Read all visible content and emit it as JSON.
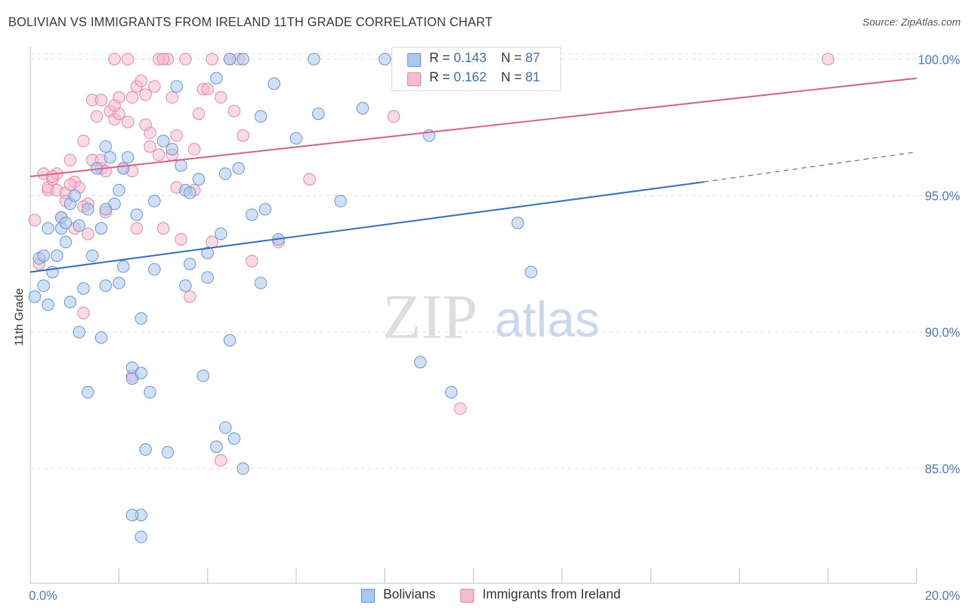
{
  "title": "BOLIVIAN VS IMMIGRANTS FROM IRELAND 11TH GRADE CORRELATION CHART",
  "source": "Source: ZipAtlas.com",
  "watermark": {
    "zip": "ZIP",
    "atlas": "atlas"
  },
  "legend": {
    "rows": [
      {
        "r_label": "R = ",
        "r_value": "0.143",
        "n_label": "N = ",
        "n_value": "87"
      },
      {
        "r_label": "R = ",
        "r_value": "0.162",
        "n_label": "N = ",
        "n_value": "81"
      }
    ],
    "series": [
      "Bolivians",
      "Immigrants from Ireland"
    ]
  },
  "colors": {
    "blue_fill": "#aac8ef",
    "blue_stroke": "#5b8fd8",
    "blue_line": "#2f6fce",
    "pink_fill": "#f5bccd",
    "pink_stroke": "#e8809f",
    "pink_line": "#e0608a",
    "axis_text": "#4a7cc9",
    "grid": "#dcdcdc"
  },
  "chart_data": {
    "type": "scatter",
    "ylabel": "11th Grade",
    "xlim": [
      0,
      20
    ],
    "ylim": [
      80.8,
      100.6
    ],
    "x_tick_labels": [
      {
        "value": 0,
        "label": "0.0%"
      },
      {
        "value": 20,
        "label": "20.0%"
      }
    ],
    "y_ticks": [
      {
        "value": 85,
        "label": "85.0%"
      },
      {
        "value": 90,
        "label": "90.0%"
      },
      {
        "value": 95,
        "label": "95.0%"
      },
      {
        "value": 100,
        "label": "100.0%"
      }
    ],
    "grid": true,
    "series": [
      {
        "name": "Bolivians",
        "trend": {
          "x0": 0,
          "y0": 92.2,
          "x1": 15.2,
          "y1": 95.5,
          "dash_to_x": 20,
          "dash_to_y": 96.6
        },
        "points": [
          [
            0.1,
            91.3
          ],
          [
            0.2,
            92.7
          ],
          [
            0.3,
            92.8
          ],
          [
            0.3,
            91.7
          ],
          [
            0.4,
            93.8
          ],
          [
            0.4,
            91.0
          ],
          [
            0.5,
            92.2
          ],
          [
            0.6,
            92.8
          ],
          [
            0.7,
            94.2
          ],
          [
            0.7,
            93.8
          ],
          [
            0.8,
            93.3
          ],
          [
            0.8,
            94.0
          ],
          [
            0.9,
            94.7
          ],
          [
            0.9,
            91.1
          ],
          [
            1.0,
            95.0
          ],
          [
            1.1,
            90.0
          ],
          [
            1.1,
            93.9
          ],
          [
            1.2,
            91.6
          ],
          [
            1.3,
            94.5
          ],
          [
            1.4,
            92.8
          ],
          [
            1.5,
            96.0
          ],
          [
            1.6,
            93.8
          ],
          [
            1.6,
            89.8
          ],
          [
            1.7,
            96.8
          ],
          [
            1.7,
            91.7
          ],
          [
            1.8,
            96.4
          ],
          [
            1.9,
            94.7
          ],
          [
            2.0,
            95.2
          ],
          [
            2.0,
            91.8
          ],
          [
            2.1,
            96.0
          ],
          [
            2.1,
            92.4
          ],
          [
            2.2,
            96.4
          ],
          [
            2.3,
            88.7
          ],
          [
            2.3,
            88.3
          ],
          [
            2.4,
            94.3
          ],
          [
            2.5,
            88.5
          ],
          [
            2.5,
            90.5
          ],
          [
            2.6,
            85.7
          ],
          [
            2.7,
            87.8
          ],
          [
            2.8,
            92.3
          ],
          [
            2.8,
            94.8
          ],
          [
            3.0,
            97.0
          ],
          [
            3.1,
            85.6
          ],
          [
            3.2,
            96.7
          ],
          [
            3.3,
            99.0
          ],
          [
            3.4,
            96.1
          ],
          [
            3.5,
            91.7
          ],
          [
            3.5,
            95.2
          ],
          [
            3.6,
            92.5
          ],
          [
            3.8,
            95.6
          ],
          [
            3.9,
            88.4
          ],
          [
            4.0,
            92.9
          ],
          [
            4.0,
            92.0
          ],
          [
            4.2,
            85.8
          ],
          [
            4.2,
            99.3
          ],
          [
            4.3,
            93.6
          ],
          [
            4.4,
            95.8
          ],
          [
            4.4,
            86.5
          ],
          [
            4.5,
            89.7
          ],
          [
            4.6,
            86.1
          ],
          [
            4.7,
            96.0
          ],
          [
            4.8,
            100.0
          ],
          [
            4.8,
            85.0
          ],
          [
            5.0,
            94.3
          ],
          [
            5.2,
            97.9
          ],
          [
            5.2,
            91.8
          ],
          [
            5.3,
            94.5
          ],
          [
            5.5,
            99.1
          ],
          [
            5.6,
            93.4
          ],
          [
            6.0,
            97.1
          ],
          [
            6.4,
            100.0
          ],
          [
            6.5,
            98.0
          ],
          [
            7.0,
            94.8
          ],
          [
            7.5,
            98.2
          ],
          [
            8.0,
            100.0
          ],
          [
            8.8,
            88.9
          ],
          [
            9.0,
            97.2
          ],
          [
            9.5,
            87.8
          ],
          [
            11.0,
            94.0
          ],
          [
            11.3,
            92.2
          ],
          [
            2.5,
            83.3
          ],
          [
            2.5,
            82.5
          ],
          [
            2.3,
            83.3
          ],
          [
            1.3,
            87.8
          ],
          [
            1.7,
            94.5
          ],
          [
            3.6,
            95.1
          ],
          [
            4.5,
            100.0
          ]
        ]
      },
      {
        "name": "Immigrants from Ireland",
        "trend": {
          "x0": 0,
          "y0": 95.7,
          "x1": 20,
          "y1": 99.3
        },
        "points": [
          [
            0.1,
            94.1
          ],
          [
            0.2,
            92.5
          ],
          [
            0.3,
            95.8
          ],
          [
            0.4,
            95.2
          ],
          [
            0.4,
            95.3
          ],
          [
            0.5,
            95.6
          ],
          [
            0.6,
            95.8
          ],
          [
            0.6,
            95.2
          ],
          [
            0.7,
            94.2
          ],
          [
            0.8,
            95.1
          ],
          [
            0.9,
            96.3
          ],
          [
            1.0,
            95.5
          ],
          [
            1.0,
            93.8
          ],
          [
            1.1,
            95.3
          ],
          [
            1.2,
            97.0
          ],
          [
            1.2,
            90.7
          ],
          [
            1.3,
            94.7
          ],
          [
            1.3,
            93.6
          ],
          [
            1.4,
            96.3
          ],
          [
            1.4,
            98.5
          ],
          [
            1.5,
            97.9
          ],
          [
            1.6,
            98.5
          ],
          [
            1.6,
            96.0
          ],
          [
            1.7,
            94.4
          ],
          [
            1.7,
            95.9
          ],
          [
            1.8,
            98.1
          ],
          [
            1.9,
            97.8
          ],
          [
            2.0,
            98.6
          ],
          [
            2.0,
            98.0
          ],
          [
            2.1,
            96.0
          ],
          [
            2.2,
            97.7
          ],
          [
            2.3,
            95.9
          ],
          [
            2.3,
            98.6
          ],
          [
            2.4,
            99.0
          ],
          [
            2.4,
            93.8
          ],
          [
            2.5,
            99.2
          ],
          [
            2.6,
            98.7
          ],
          [
            2.7,
            97.3
          ],
          [
            2.8,
            99.0
          ],
          [
            2.9,
            96.5
          ],
          [
            3.0,
            93.8
          ],
          [
            3.1,
            100.0
          ],
          [
            3.2,
            98.6
          ],
          [
            3.3,
            97.2
          ],
          [
            3.3,
            95.3
          ],
          [
            3.4,
            93.4
          ],
          [
            3.5,
            100.0
          ],
          [
            3.6,
            91.3
          ],
          [
            3.7,
            96.7
          ],
          [
            3.8,
            98.0
          ],
          [
            3.9,
            98.9
          ],
          [
            4.0,
            98.9
          ],
          [
            4.1,
            93.3
          ],
          [
            4.3,
            98.6
          ],
          [
            4.3,
            85.3
          ],
          [
            4.6,
            98.1
          ],
          [
            4.7,
            100.0
          ],
          [
            4.8,
            97.2
          ],
          [
            5.0,
            92.6
          ],
          [
            5.6,
            93.3
          ],
          [
            6.3,
            95.6
          ],
          [
            8.2,
            97.9
          ],
          [
            9.7,
            87.2
          ],
          [
            18.0,
            100.0
          ],
          [
            2.2,
            100.0
          ],
          [
            2.9,
            100.0
          ],
          [
            3.0,
            100.0
          ],
          [
            4.1,
            100.0
          ],
          [
            4.5,
            100.0
          ],
          [
            1.9,
            100.0
          ],
          [
            2.3,
            88.4
          ],
          [
            0.8,
            94.8
          ],
          [
            1.2,
            94.6
          ],
          [
            0.5,
            95.7
          ],
          [
            1.6,
            96.3
          ],
          [
            3.7,
            95.2
          ],
          [
            2.7,
            96.8
          ],
          [
            1.9,
            98.3
          ],
          [
            2.6,
            97.6
          ],
          [
            3.2,
            96.5
          ],
          [
            0.9,
            95.4
          ]
        ]
      }
    ]
  }
}
